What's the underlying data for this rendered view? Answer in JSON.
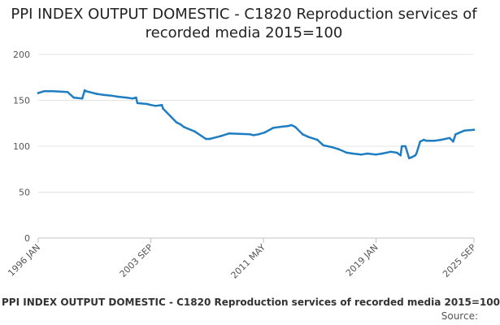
{
  "chart_data": {
    "type": "line",
    "title": "PPI INDEX OUTPUT DOMESTIC - C1820 Reproduction services of recorded media 2015=100",
    "xlabel": "",
    "ylabel": "",
    "ylim": [
      0,
      200
    ],
    "yticks": [
      "0",
      "50",
      "100",
      "150",
      "200"
    ],
    "xticks": [
      "1996 JAN",
      "2003 SEP",
      "2011 MAY",
      "2019 JAN",
      "2025 SEP"
    ],
    "grid": true,
    "legend": "bottom",
    "color": "#1f7ec1",
    "series": [
      {
        "name": "PPI INDEX OUTPUT DOMESTIC - C1820 Reproduction services of recorded media 2015=100",
        "x": [
          "1996 JAN",
          "1996 JUN",
          "1997 JAN",
          "1998 JAN",
          "1998 JUN",
          "1999 JAN",
          "1999 MAR",
          "1999 APR",
          "2000 JAN",
          "2000 JUN",
          "2001 JAN",
          "2001 JUN",
          "2002 JAN",
          "2002 JUN",
          "2002 SEP",
          "2002 OCT",
          "2003 JUN",
          "2003 SEP",
          "2004 JAN",
          "2004 JUN",
          "2004 JUL",
          "2005 JUN",
          "2005 SEP",
          "2005 DEC",
          "2006 SEP",
          "2007 JUN",
          "2007 SEP",
          "2008 JUN",
          "2009 JAN",
          "2010 JUN",
          "2010 SEP",
          "2011 JAN",
          "2011 JUN",
          "2012 JAN",
          "2012 JUN",
          "2013 JAN",
          "2013 APR",
          "2013 JUL",
          "2014 JAN",
          "2014 JUN",
          "2015 JAN",
          "2015 JUN",
          "2016 JAN",
          "2016 JUN",
          "2017 JAN",
          "2017 JUN",
          "2018 JAN",
          "2018 JUN",
          "2019 JAN",
          "2019 JUN",
          "2020 JAN",
          "2020 JUN",
          "2020 SEP",
          "2020 OCT",
          "2021 JAN",
          "2021 APR",
          "2021 JUN",
          "2021 SEP",
          "2021 OCT",
          "2022 JAN",
          "2022 APR",
          "2022 JUN",
          "2023 JAN",
          "2023 JUN",
          "2024 JAN",
          "2024 APR",
          "2024 JUN",
          "2025 JAN",
          "2025 SEP"
        ],
        "values": [
          158,
          160,
          160,
          159,
          153,
          152,
          161,
          160,
          157,
          156,
          155,
          154,
          153,
          152,
          153,
          147,
          146,
          145,
          144,
          145,
          141,
          126,
          124,
          121,
          116,
          108,
          108,
          111,
          114,
          113,
          112,
          113,
          115,
          120,
          121,
          122,
          123,
          121,
          113,
          110,
          107,
          101,
          99,
          97,
          93,
          92,
          91,
          92,
          91,
          92,
          94,
          93,
          90,
          100,
          100,
          87,
          88,
          90,
          92,
          105,
          107,
          106,
          106,
          107,
          109,
          105,
          113,
          117,
          118
        ]
      }
    ]
  },
  "footer": {
    "legend_label": "PPI INDEX OUTPUT DOMESTIC - C1820 Reproduction services of recorded media 2015=100",
    "source": "Source:"
  }
}
